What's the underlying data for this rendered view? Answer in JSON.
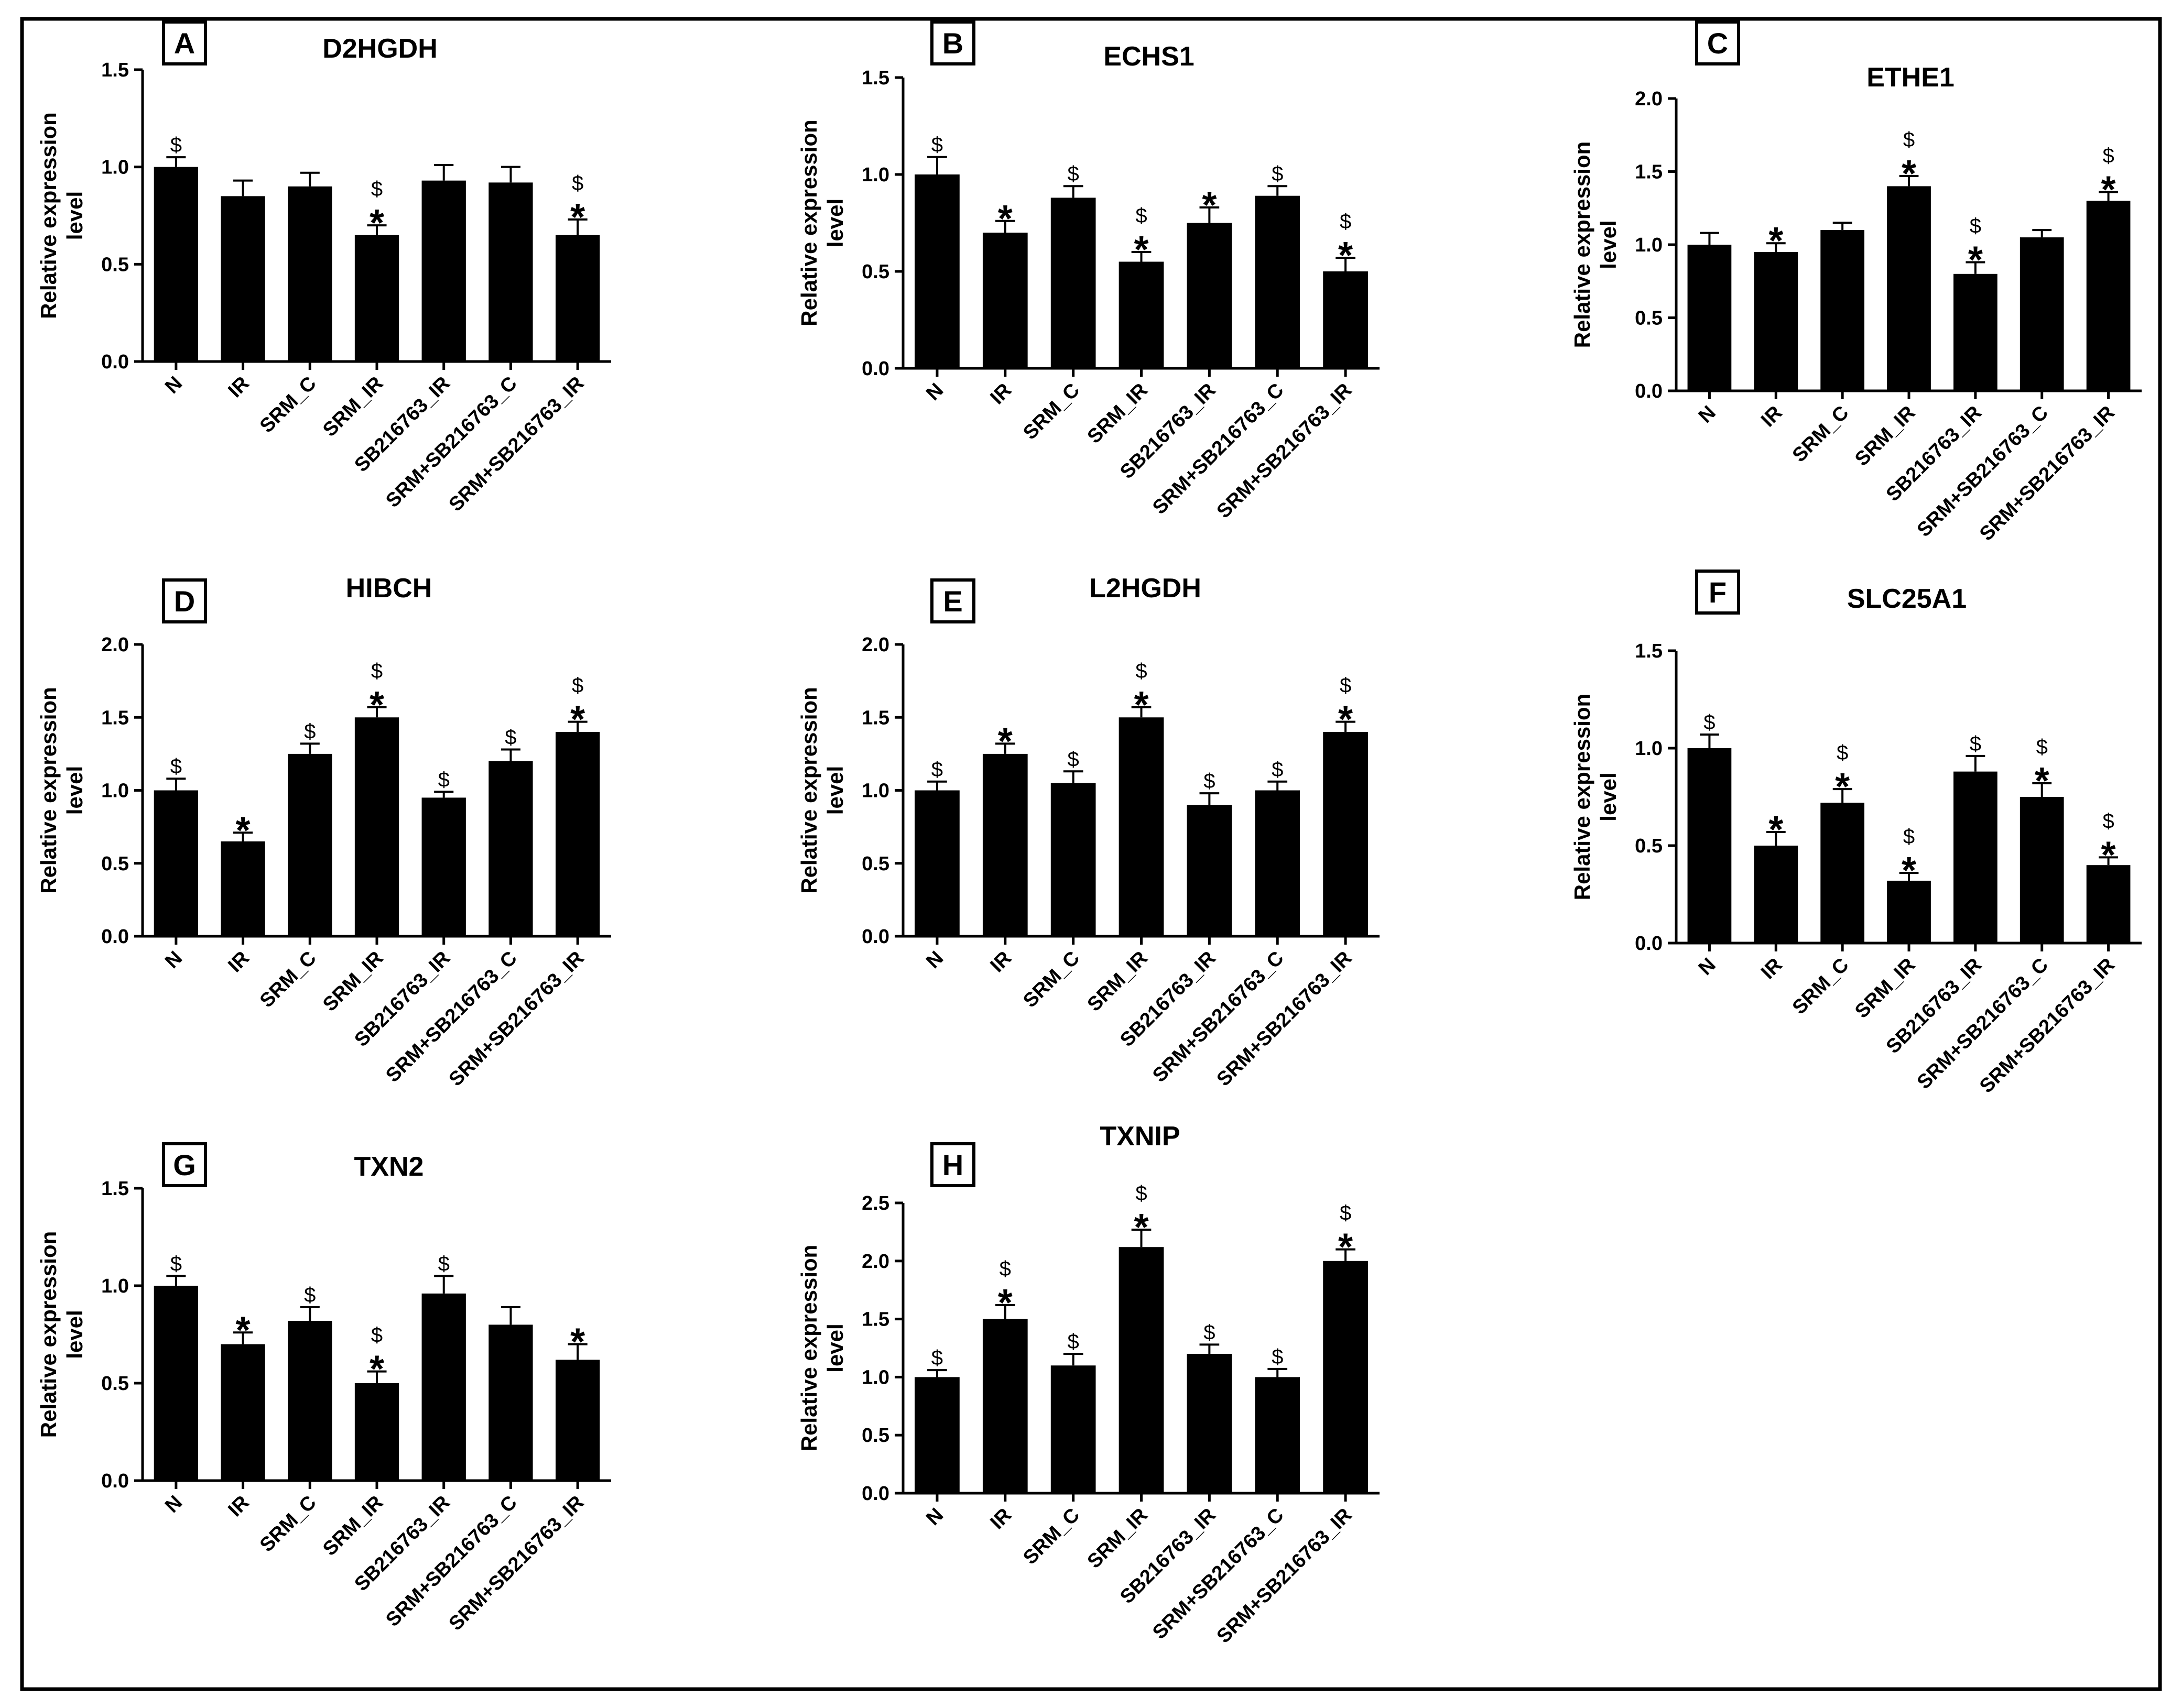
{
  "figure": {
    "shared_categories": [
      "N",
      "IR",
      "SRM_C",
      "SRM_IR",
      "SB216763_IR",
      "SRM+SB216763_C",
      "SRM+SB216763_IR"
    ],
    "asterisk_symbol": "*",
    "dollar_symbol": "$",
    "bar_color": "#000000"
  },
  "chart_data": [
    {
      "panel": "A",
      "type": "bar",
      "title": "D2HGDH",
      "ylabel_line1": "Relative expression",
      "ylabel_line2": "level",
      "categories": [
        "N",
        "IR",
        "SRM_C",
        "SRM_IR",
        "SB216763_IR",
        "SRM+SB216763_C",
        "SRM+SB216763_IR"
      ],
      "values": [
        1.0,
        0.85,
        0.9,
        0.65,
        0.93,
        0.92,
        0.65
      ],
      "errors": [
        0.05,
        0.08,
        0.07,
        0.05,
        0.08,
        0.08,
        0.08
      ],
      "star": [
        false,
        false,
        false,
        true,
        false,
        false,
        true
      ],
      "dollar": [
        true,
        false,
        false,
        true,
        false,
        false,
        true
      ],
      "ylim": [
        0,
        1.5
      ],
      "yticks": [
        "0.0",
        "0.5",
        "1.0",
        "1.5"
      ]
    },
    {
      "panel": "B",
      "type": "bar",
      "title": "ECHS1",
      "ylabel_line1": "Relative expression",
      "ylabel_line2": "level",
      "categories": [
        "N",
        "IR",
        "SRM_C",
        "SRM_IR",
        "SB216763_IR",
        "SRM+SB216763_C",
        "SRM+SB216763_IR"
      ],
      "values": [
        1.0,
        0.7,
        0.88,
        0.55,
        0.75,
        0.89,
        0.5
      ],
      "errors": [
        0.09,
        0.06,
        0.06,
        0.05,
        0.08,
        0.05,
        0.07
      ],
      "star": [
        false,
        true,
        false,
        true,
        true,
        false,
        true
      ],
      "dollar": [
        true,
        false,
        true,
        true,
        false,
        true,
        true
      ],
      "ylim": [
        0,
        1.5
      ],
      "yticks": [
        "0.0",
        "0.5",
        "1.0",
        "1.5"
      ]
    },
    {
      "panel": "C",
      "type": "bar",
      "title": "ETHE1",
      "ylabel_line1": "Relative expression",
      "ylabel_line2": "level",
      "categories": [
        "N",
        "IR",
        "SRM_C",
        "SRM_IR",
        "SB216763_IR",
        "SRM+SB216763_C",
        "SRM+SB216763_IR"
      ],
      "values": [
        1.0,
        0.95,
        1.1,
        1.4,
        0.8,
        1.05,
        1.3
      ],
      "errors": [
        0.08,
        0.06,
        0.05,
        0.07,
        0.08,
        0.05,
        0.06
      ],
      "star": [
        false,
        true,
        false,
        true,
        true,
        false,
        true
      ],
      "dollar": [
        false,
        false,
        false,
        true,
        true,
        false,
        true
      ],
      "ylim": [
        0,
        2.0
      ],
      "yticks": [
        "0.0",
        "0.5",
        "1.0",
        "1.5",
        "2.0"
      ]
    },
    {
      "panel": "D",
      "type": "bar",
      "title": "HIBCH",
      "ylabel_line1": "Relative expression",
      "ylabel_line2": "level",
      "categories": [
        "N",
        "IR",
        "SRM_C",
        "SRM_IR",
        "SB216763_IR",
        "SRM+SB216763_C",
        "SRM+SB216763_IR"
      ],
      "values": [
        1.0,
        0.65,
        1.25,
        1.5,
        0.95,
        1.2,
        1.4
      ],
      "errors": [
        0.08,
        0.06,
        0.07,
        0.07,
        0.04,
        0.08,
        0.07
      ],
      "star": [
        false,
        true,
        false,
        true,
        false,
        false,
        true
      ],
      "dollar": [
        true,
        false,
        true,
        true,
        true,
        true,
        true
      ],
      "ylim": [
        0,
        2.0
      ],
      "yticks": [
        "0.0",
        "0.5",
        "1.0",
        "1.5",
        "2.0"
      ]
    },
    {
      "panel": "E",
      "type": "bar",
      "title": "L2HGDH",
      "ylabel_line1": "Relative expression",
      "ylabel_line2": "level",
      "categories": [
        "N",
        "IR",
        "SRM_C",
        "SRM_IR",
        "SB216763_IR",
        "SRM+SB216763_C",
        "SRM+SB216763_IR"
      ],
      "values": [
        1.0,
        1.25,
        1.05,
        1.5,
        0.9,
        1.0,
        1.4
      ],
      "errors": [
        0.06,
        0.07,
        0.08,
        0.07,
        0.08,
        0.06,
        0.07
      ],
      "star": [
        false,
        true,
        false,
        true,
        false,
        false,
        true
      ],
      "dollar": [
        true,
        false,
        true,
        true,
        true,
        true,
        true
      ],
      "ylim": [
        0,
        2.0
      ],
      "yticks": [
        "0.0",
        "0.5",
        "1.0",
        "1.5",
        "2.0"
      ]
    },
    {
      "panel": "F",
      "type": "bar",
      "title": "SLC25A1",
      "ylabel_line1": "Relative expression",
      "ylabel_line2": "level",
      "categories": [
        "N",
        "IR",
        "SRM_C",
        "SRM_IR",
        "SB216763_IR",
        "SRM+SB216763_C",
        "SRM+SB216763_IR"
      ],
      "values": [
        1.0,
        0.5,
        0.72,
        0.32,
        0.88,
        0.75,
        0.4
      ],
      "errors": [
        0.07,
        0.07,
        0.07,
        0.04,
        0.08,
        0.07,
        0.04
      ],
      "star": [
        false,
        true,
        true,
        true,
        false,
        true,
        true
      ],
      "dollar": [
        true,
        false,
        true,
        true,
        true,
        true,
        true
      ],
      "ylim": [
        0,
        1.5
      ],
      "yticks": [
        "0.0",
        "0.5",
        "1.0",
        "1.5"
      ]
    },
    {
      "panel": "G",
      "type": "bar",
      "title": "TXN2",
      "ylabel_line1": "Relative expression",
      "ylabel_line2": "level",
      "categories": [
        "N",
        "IR",
        "SRM_C",
        "SRM_IR",
        "SB216763_IR",
        "SRM+SB216763_C",
        "SRM+SB216763_IR"
      ],
      "values": [
        1.0,
        0.7,
        0.82,
        0.5,
        0.96,
        0.8,
        0.62
      ],
      "errors": [
        0.05,
        0.06,
        0.07,
        0.06,
        0.09,
        0.09,
        0.08
      ],
      "star": [
        false,
        true,
        false,
        true,
        false,
        false,
        true
      ],
      "dollar": [
        true,
        false,
        true,
        true,
        true,
        false,
        false
      ],
      "ylim": [
        0,
        1.5
      ],
      "yticks": [
        "0.0",
        "0.5",
        "1.0",
        "1.5"
      ]
    },
    {
      "panel": "H",
      "type": "bar",
      "title": "TXNIP",
      "ylabel_line1": "Relative expression",
      "ylabel_line2": "level",
      "categories": [
        "N",
        "IR",
        "SRM_C",
        "SRM_IR",
        "SB216763_IR",
        "SRM+SB216763_C",
        "SRM+SB216763_IR"
      ],
      "values": [
        1.0,
        1.5,
        1.1,
        2.12,
        1.2,
        1.0,
        2.0
      ],
      "errors": [
        0.06,
        0.12,
        0.1,
        0.15,
        0.08,
        0.07,
        0.1
      ],
      "star": [
        false,
        true,
        false,
        true,
        false,
        false,
        true
      ],
      "dollar": [
        true,
        true,
        true,
        true,
        true,
        true,
        true
      ],
      "ylim": [
        0,
        2.5
      ],
      "yticks": [
        "0.0",
        "0.5",
        "1.0",
        "1.5",
        "2.0",
        "2.5"
      ]
    }
  ]
}
